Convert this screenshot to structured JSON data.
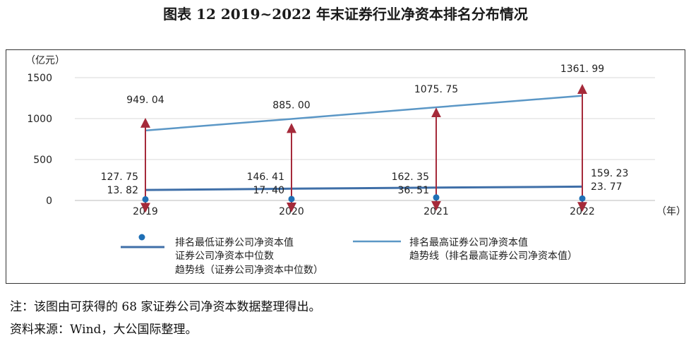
{
  "title": "图表 12  2019~2022 年末证券行业净资本排名分布情况",
  "chart_data": {
    "type": "line",
    "y_unit": "（亿元）",
    "x_unit": "（年）",
    "ylim": [
      0,
      1500
    ],
    "yticks": [
      0,
      500,
      1000,
      1500
    ],
    "x": [
      "2019",
      "2020",
      "2021",
      "2022"
    ],
    "grid": true,
    "legend_position": "bottom",
    "series": [
      {
        "name": "排名最低证券公司净资本值",
        "values": [
          13.82,
          17.4,
          36.51,
          23.77
        ],
        "labels": [
          "13. 82",
          "17. 40",
          "36. 51",
          "23. 77"
        ],
        "color": "#1f6fb5"
      },
      {
        "name": "证券公司净资本中位数",
        "values": [
          127.75,
          146.41,
          162.35,
          159.23
        ],
        "labels": [
          "127. 75",
          "146. 41",
          "162. 35",
          "159. 23"
        ],
        "color": "#a52a3a"
      },
      {
        "name": "排名最高证券公司净资本值",
        "values": [
          949.04,
          885.0,
          1075.75,
          1361.99
        ],
        "labels": [
          "949. 04",
          "885. 00",
          "1075. 75",
          "1361. 99"
        ],
        "color": "#a52a3a"
      }
    ],
    "trendlines": [
      {
        "name": "趋势线（证券公司净资本中位数）",
        "values": [
          128,
          144,
          157,
          169
        ],
        "color": "#3f6fa8"
      },
      {
        "name": "趋势线（排名最高证券公司净资本值）",
        "values": [
          855,
          996,
          1138,
          1279
        ],
        "color": "#5b97c6"
      }
    ]
  },
  "notes": {
    "note1": "注：该图由可获得的 68 家证券公司净资本数据整理得出。",
    "note2": "资料来源：Wind，大公国际整理。"
  }
}
